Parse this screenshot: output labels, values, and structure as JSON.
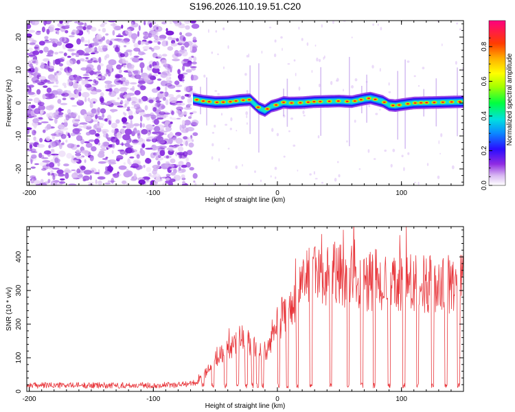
{
  "title": "S196.2026.110.19.51.C20",
  "chart_data": [
    {
      "type": "heatmap",
      "title": "S196.2026.110.19.51.C20",
      "xlabel": "Height of straight line (km)",
      "ylabel": "Frequency (Hz)",
      "xlim": [
        -202,
        150
      ],
      "ylim": [
        -25,
        25
      ],
      "x_ticks": [
        -200,
        -100,
        0,
        100
      ],
      "y_ticks": [
        -20,
        -10,
        0,
        10,
        20
      ],
      "x_tick_labels": [
        "-200",
        "-100",
        "0",
        "100"
      ],
      "y_tick_labels": [
        "-20",
        "-10",
        "0",
        "10",
        "20"
      ],
      "colorbar": {
        "label": "Normalized spectral amplitude",
        "range": [
          0,
          0.95
        ],
        "ticks": [
          0,
          0.2,
          0.4,
          0.6,
          0.8
        ],
        "tick_labels": [
          "0.0",
          "0.2",
          "0.4",
          "0.6",
          "0.8"
        ]
      },
      "noise_region": {
        "x_range": [
          -202,
          -66
        ],
        "frequency_range": [
          -25,
          25
        ],
        "level": 0.05
      },
      "signal_track": {
        "x": [
          -68,
          -60,
          -50,
          -40,
          -30,
          -22,
          -15,
          -10,
          -5,
          0,
          5,
          10,
          20,
          30,
          40,
          50,
          60,
          70,
          75,
          80,
          85,
          90,
          95,
          100,
          110,
          120,
          130,
          140,
          150
        ],
        "frequency": [
          1.2,
          0.6,
          0.2,
          0.3,
          0.8,
          1.0,
          -1.5,
          -2.3,
          -1.0,
          -0.5,
          0.2,
          0.0,
          0.1,
          0.4,
          0.5,
          0.6,
          0.4,
          1.2,
          1.5,
          1.0,
          0.5,
          -0.6,
          -0.8,
          -0.5,
          0.0,
          0.1,
          0.2,
          0.3,
          0.4
        ]
      }
    },
    {
      "type": "line",
      "xlabel": "Height of straight line (km)",
      "ylabel": "SNR (10 * v/v)",
      "xlim": [
        -202,
        150
      ],
      "ylim": [
        0,
        490
      ],
      "x_ticks": [
        -200,
        -100,
        0,
        100
      ],
      "y_ticks": [
        0,
        100,
        200,
        300,
        400
      ],
      "x_tick_labels": [
        "-200",
        "-100",
        "0",
        "100"
      ],
      "y_tick_labels": [
        "0",
        "100",
        "200",
        "300",
        "400"
      ],
      "color": "#e8373c",
      "series": [
        {
          "name": "SNR",
          "x": [
            -202,
            -180,
            -160,
            -140,
            -120,
            -100,
            -80,
            -66,
            -60,
            -55,
            -50,
            -45,
            -40,
            -35,
            -30,
            -25,
            -20,
            -15,
            -10,
            -5,
            0,
            5,
            10,
            15,
            20,
            25,
            30,
            35,
            40,
            45,
            50,
            55,
            60,
            65,
            70,
            75,
            80,
            85,
            90,
            95,
            100,
            110,
            120,
            130,
            140,
            150
          ],
          "values": [
            18,
            18,
            18,
            18,
            18,
            18,
            20,
            25,
            45,
            70,
            95,
            110,
            125,
            140,
            155,
            150,
            130,
            120,
            110,
            150,
            200,
            230,
            240,
            280,
            310,
            335,
            345,
            350,
            350,
            350,
            345,
            340,
            340,
            335,
            330,
            320,
            320,
            320,
            315,
            315,
            320,
            320,
            320,
            320,
            320,
            320
          ]
        }
      ],
      "dropouts_x": [
        -60,
        -52,
        -42,
        -32,
        -25,
        -20,
        -16,
        -12,
        1,
        8,
        16,
        27,
        43,
        57,
        68,
        78,
        90,
        102,
        113,
        125,
        136,
        146
      ],
      "dropout_level": 10
    }
  ]
}
